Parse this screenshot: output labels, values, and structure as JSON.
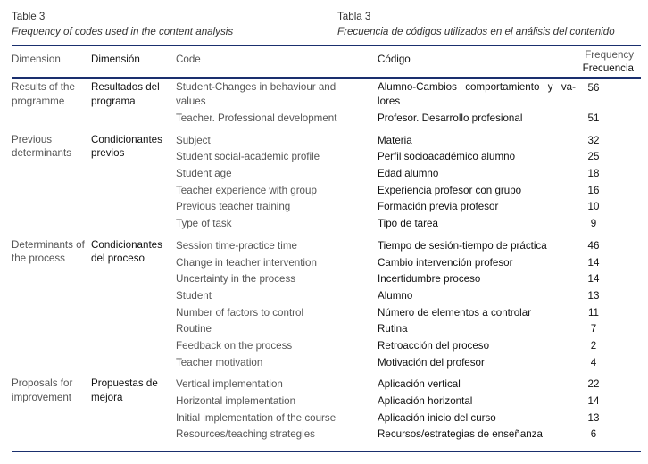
{
  "caption_en": {
    "label": "Table 3",
    "title": "Frequency of codes used in the content analysis"
  },
  "caption_es": {
    "label": "Tabla 3",
    "title": "Frecuencia de códigos utilizados en el análisis del contenido"
  },
  "header": {
    "dimension_en": "Dimension",
    "dimension_es": "Dimensión",
    "code_en": "Code",
    "code_es": "Código",
    "frequency_en": "Frequency",
    "frequency_es": "Frecuencia"
  },
  "groups": [
    {
      "dimension_en": "Results of the programme",
      "dimension_es": "Resultados del programa",
      "rows": [
        {
          "code_en": "Student-Changes in behaviour and values",
          "code_es": "Alumno-Cambios comportamiento y va-lores",
          "frequency": 56
        },
        {
          "code_en": "Teacher. Professional development",
          "code_es": "Profesor. Desarrollo profesional",
          "frequency": 51
        }
      ]
    },
    {
      "dimension_en": "Previous determinants",
      "dimension_es": "Condicionantes previos",
      "rows": [
        {
          "code_en": "Subject",
          "code_es": "Materia",
          "frequency": 32
        },
        {
          "code_en": "Student social-academic profile",
          "code_es": "Perfil socioacadémico alumno",
          "frequency": 25
        },
        {
          "code_en": "Student age",
          "code_es": "Edad alumno",
          "frequency": 18
        },
        {
          "code_en": "Teacher experience with group",
          "code_es": "Experiencia profesor con grupo",
          "frequency": 16
        },
        {
          "code_en": "Previous teacher training",
          "code_es": "Formación previa profesor",
          "frequency": 10
        },
        {
          "code_en": "Type of task",
          "code_es": "Tipo de tarea",
          "frequency": 9
        }
      ]
    },
    {
      "dimension_en": "Determinants of the process",
      "dimension_es": "Condicionantes del proceso",
      "rows": [
        {
          "code_en": "Session time-practice time",
          "code_es": "Tiempo de sesión-tiempo de práctica",
          "frequency": 46
        },
        {
          "code_en": "Change in teacher intervention",
          "code_es": "Cambio intervención profesor",
          "frequency": 14
        },
        {
          "code_en": "Uncertainty in the process",
          "code_es": "Incertidumbre proceso",
          "frequency": 14
        },
        {
          "code_en": "Student",
          "code_es": "Alumno",
          "frequency": 13
        },
        {
          "code_en": "Number of factors to control",
          "code_es": "Número de elementos a controlar",
          "frequency": 11
        },
        {
          "code_en": "Routine",
          "code_es": "Rutina",
          "frequency": 7
        },
        {
          "code_en": "Feedback on the process",
          "code_es": "Retroacción del proceso",
          "frequency": 2
        },
        {
          "code_en": "Teacher motivation",
          "code_es": "Motivación del profesor",
          "frequency": 4
        }
      ]
    },
    {
      "dimension_en": "Proposals for improvement",
      "dimension_es": "Propuestas de mejora",
      "rows": [
        {
          "code_en": "Vertical implementation",
          "code_es": "Aplicación vertical",
          "frequency": 22
        },
        {
          "code_en": "Horizontal implementation",
          "code_es": "Aplicación horizontal",
          "frequency": 14
        },
        {
          "code_en": "Initial implementation of the course",
          "code_es": "Aplicación inicio del curso",
          "frequency": 13
        },
        {
          "code_en": "Resources/teaching strategies",
          "code_es": "Recursos/estrategias de enseñanza",
          "frequency": 6
        }
      ]
    }
  ]
}
